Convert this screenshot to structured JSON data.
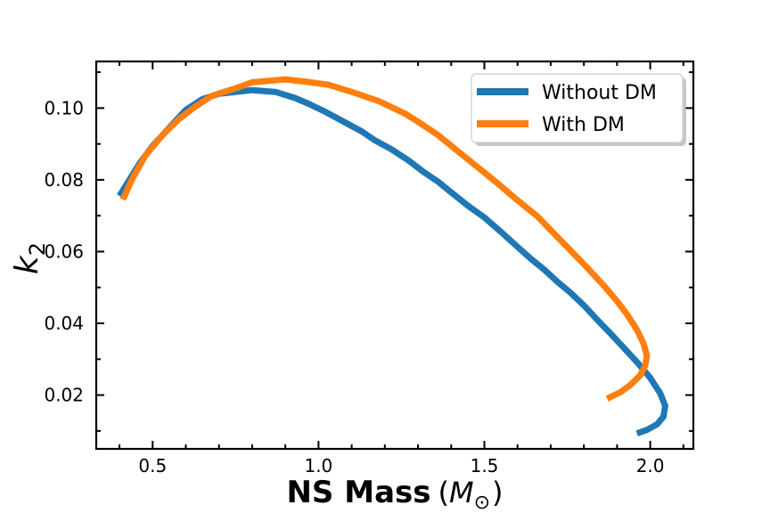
{
  "chart_data": {
    "type": "line",
    "xlabel": "NS Mass",
    "xlabel_unit_open": "(",
    "xlabel_unit_symbol": "M",
    "xlabel_unit_sub": "⊙",
    "xlabel_unit_close": ")",
    "ylabel": "k",
    "ylabel_sub": "2",
    "xlim": [
      0.33,
      2.13
    ],
    "ylim": [
      0.005,
      0.113
    ],
    "xticks": [
      0.5,
      1.0,
      1.5,
      2.0
    ],
    "xtick_labels": [
      "0.5",
      "1.0",
      "1.5",
      "2.0"
    ],
    "yticks": [
      0.02,
      0.04,
      0.06,
      0.08,
      0.1
    ],
    "ytick_labels": [
      "0.02",
      "0.04",
      "0.06",
      "0.08",
      "0.10"
    ],
    "legend_position": "top-right",
    "grid": false,
    "series": [
      {
        "name": "Without DM",
        "color": "#1f77b4",
        "points": [
          [
            0.4,
            0.0755
          ],
          [
            0.43,
            0.08
          ],
          [
            0.46,
            0.0845
          ],
          [
            0.5,
            0.0895
          ],
          [
            0.55,
            0.0945
          ],
          [
            0.6,
            0.0995
          ],
          [
            0.65,
            0.1025
          ],
          [
            0.7,
            0.104
          ],
          [
            0.8,
            0.105
          ],
          [
            0.87,
            0.1045
          ],
          [
            0.93,
            0.1028
          ],
          [
            0.97,
            0.1012
          ],
          [
            1.02,
            0.099
          ],
          [
            1.08,
            0.096
          ],
          [
            1.13,
            0.0935
          ],
          [
            1.17,
            0.091
          ],
          [
            1.22,
            0.0885
          ],
          [
            1.27,
            0.0855
          ],
          [
            1.32,
            0.082
          ],
          [
            1.36,
            0.0795
          ],
          [
            1.4,
            0.0765
          ],
          [
            1.45,
            0.0728
          ],
          [
            1.5,
            0.0695
          ],
          [
            1.55,
            0.0655
          ],
          [
            1.6,
            0.0613
          ],
          [
            1.64,
            0.058
          ],
          [
            1.68,
            0.055
          ],
          [
            1.72,
            0.0516
          ],
          [
            1.76,
            0.0485
          ],
          [
            1.8,
            0.045
          ],
          [
            1.84,
            0.041
          ],
          [
            1.88,
            0.0372
          ],
          [
            1.92,
            0.0332
          ],
          [
            1.96,
            0.0292
          ],
          [
            2.0,
            0.0248
          ],
          [
            2.03,
            0.0205
          ],
          [
            2.045,
            0.017
          ],
          [
            2.04,
            0.014
          ],
          [
            2.02,
            0.0118
          ],
          [
            1.99,
            0.0103
          ],
          [
            1.96,
            0.0093
          ]
        ]
      },
      {
        "name": "With DM",
        "color": "#ff7f0e",
        "points": [
          [
            0.41,
            0.0745
          ],
          [
            0.44,
            0.0805
          ],
          [
            0.48,
            0.087
          ],
          [
            0.53,
            0.0925
          ],
          [
            0.58,
            0.097
          ],
          [
            0.63,
            0.1005
          ],
          [
            0.68,
            0.1035
          ],
          [
            0.75,
            0.1055
          ],
          [
            0.8,
            0.1072
          ],
          [
            0.9,
            0.108
          ],
          [
            0.96,
            0.1074
          ],
          [
            1.03,
            0.1065
          ],
          [
            1.1,
            0.1045
          ],
          [
            1.18,
            0.102
          ],
          [
            1.26,
            0.0985
          ],
          [
            1.3,
            0.0962
          ],
          [
            1.36,
            0.0925
          ],
          [
            1.42,
            0.088
          ],
          [
            1.48,
            0.0835
          ],
          [
            1.54,
            0.079
          ],
          [
            1.6,
            0.0743
          ],
          [
            1.66,
            0.0698
          ],
          [
            1.71,
            0.065
          ],
          [
            1.76,
            0.0603
          ],
          [
            1.81,
            0.0555
          ],
          [
            1.86,
            0.0505
          ],
          [
            1.9,
            0.0462
          ],
          [
            1.93,
            0.0425
          ],
          [
            1.96,
            0.0382
          ],
          [
            1.98,
            0.0343
          ],
          [
            1.99,
            0.031
          ],
          [
            1.985,
            0.0282
          ],
          [
            1.97,
            0.0255
          ],
          [
            1.94,
            0.0228
          ],
          [
            1.91,
            0.0208
          ],
          [
            1.87,
            0.019
          ]
        ]
      }
    ]
  }
}
